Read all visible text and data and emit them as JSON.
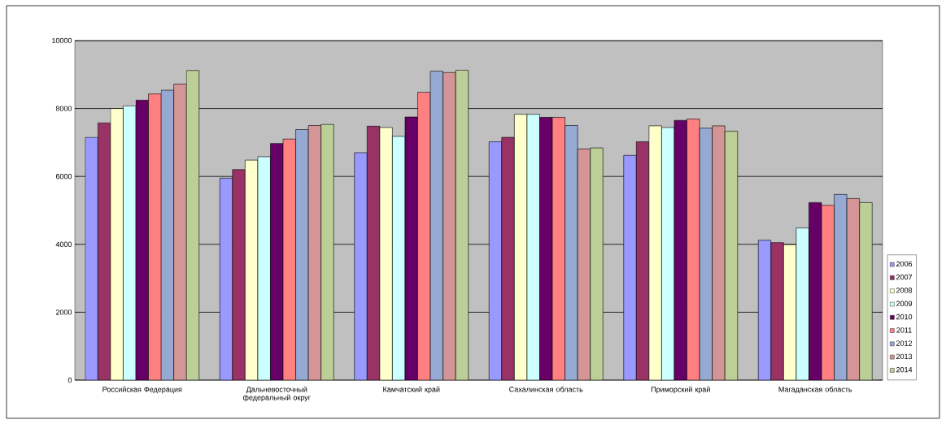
{
  "chart_data": {
    "type": "bar",
    "categories": [
      "Российская Федерация",
      "Дальневосточный федеральный округ",
      "Камчатский край",
      "Сахалинская область",
      "Приморский край",
      "Магаданская область"
    ],
    "series": [
      {
        "name": "2006",
        "color": "#9999ff",
        "values": [
          7150,
          5950,
          6700,
          7020,
          6620,
          4120
        ]
      },
      {
        "name": "2007",
        "color": "#993366",
        "values": [
          7580,
          6200,
          7480,
          7150,
          7020,
          4050
        ]
      },
      {
        "name": "2008",
        "color": "#ffffcc",
        "values": [
          8000,
          6480,
          7440,
          7830,
          7490,
          3990
        ]
      },
      {
        "name": "2009",
        "color": "#ccffff",
        "values": [
          8080,
          6580,
          7180,
          7830,
          7440,
          4480
        ]
      },
      {
        "name": "2010",
        "color": "#660066",
        "values": [
          8250,
          6970,
          7750,
          7740,
          7650,
          5230
        ]
      },
      {
        "name": "2011",
        "color": "#ff8080",
        "values": [
          8430,
          7100,
          8480,
          7740,
          7690,
          5150
        ]
      },
      {
        "name": "2012",
        "color": "#95a9d3",
        "values": [
          8540,
          7380,
          9100,
          7500,
          7420,
          5470
        ]
      },
      {
        "name": "2013",
        "color": "#d39595",
        "values": [
          8720,
          7500,
          9060,
          6810,
          7490,
          5350
        ]
      },
      {
        "name": "2014",
        "color": "#bccf97",
        "values": [
          9120,
          7530,
          9130,
          6840,
          7330,
          5230
        ]
      }
    ],
    "ylim": [
      0,
      10000
    ],
    "yticks": [
      0,
      2000,
      4000,
      6000,
      8000,
      10000
    ],
    "grid": "y",
    "legend": "right"
  }
}
